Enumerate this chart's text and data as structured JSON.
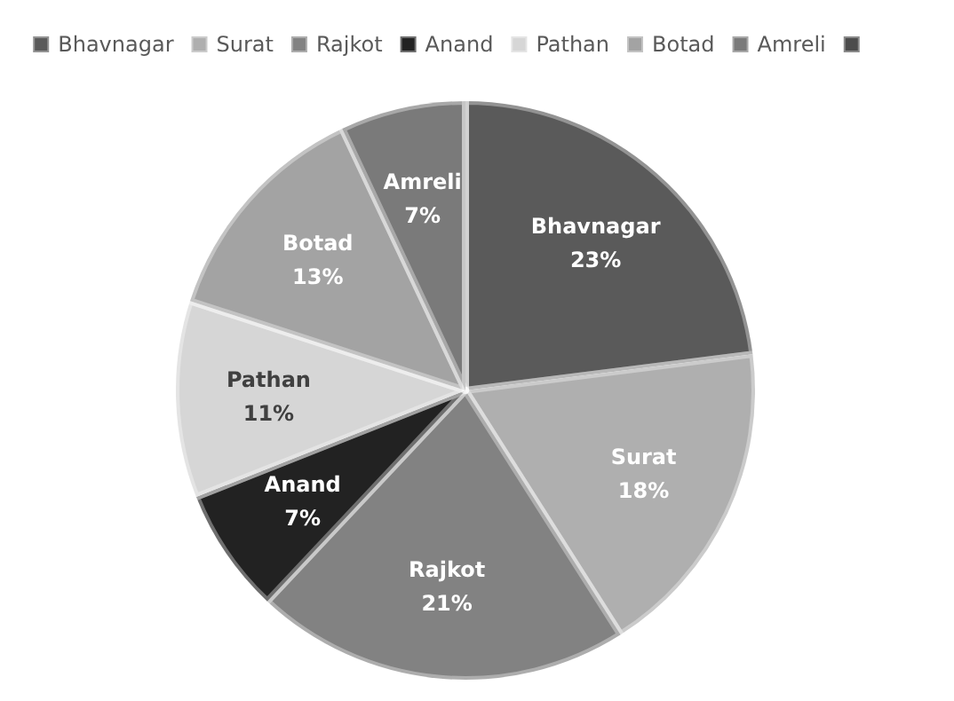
{
  "chart_data": {
    "type": "pie",
    "categories": [
      "Bhavnagar",
      "Surat",
      "Rajkot",
      "Anand",
      "Pathan",
      "Botad",
      "Amreli",
      null
    ],
    "values": [
      23,
      18,
      21,
      7,
      11,
      13,
      7,
      0
    ],
    "value_labels": [
      "23%",
      "18%",
      "21%",
      "7%",
      "11%",
      "13%",
      "7%",
      null
    ],
    "colors": [
      "#5a5a5a",
      "#afafaf",
      "#828282",
      "#222222",
      "#d6d6d6",
      "#a3a3a3",
      "#7a7a7a",
      "#4c4c4c"
    ],
    "legend": "top"
  }
}
